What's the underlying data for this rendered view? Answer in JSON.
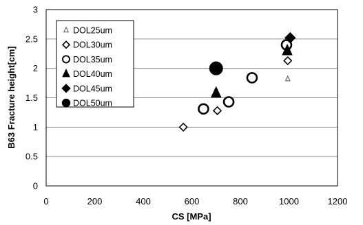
{
  "chart_data": {
    "type": "scatter",
    "xlabel": "CS [MPa]",
    "ylabel": "B63 Fracture height[cm]",
    "xlim": [
      0,
      1200
    ],
    "ylim": [
      0,
      3
    ],
    "xticks": [
      0,
      200,
      400,
      600,
      800,
      1000,
      1200
    ],
    "yticks": [
      0,
      0.5,
      1,
      1.5,
      2,
      2.5,
      3
    ],
    "xtick_labels": [
      "0",
      "200",
      "400",
      "600",
      "800",
      "1000",
      "1200"
    ],
    "ytick_labels": [
      "0",
      "0.5",
      "1",
      "1.5",
      "2",
      "2.5",
      "3"
    ],
    "grid": "horizontal",
    "legend_position": "top-left",
    "series": [
      {
        "name": "DOL25um",
        "marker": "triangle-open",
        "color": "#555555",
        "points": [
          [
            995,
            1.82
          ]
        ]
      },
      {
        "name": "DOL30um",
        "marker": "diamond-open",
        "color": "#000000",
        "points": [
          [
            565,
            1.0
          ],
          [
            705,
            1.28
          ],
          [
            995,
            2.13
          ]
        ]
      },
      {
        "name": "DOL35um",
        "marker": "circle-open",
        "color": "#000000",
        "points": [
          [
            648,
            1.31
          ],
          [
            752,
            1.43
          ],
          [
            848,
            1.84
          ],
          [
            990,
            2.4
          ]
        ]
      },
      {
        "name": "DOL40um",
        "marker": "triangle-filled",
        "color": "#000000",
        "points": [
          [
            700,
            1.58
          ],
          [
            993,
            2.3
          ]
        ]
      },
      {
        "name": "DOL45um",
        "marker": "diamond-filled",
        "color": "#000000",
        "points": [
          [
            1005,
            2.52
          ]
        ]
      },
      {
        "name": "DOL50um",
        "marker": "circle-filled",
        "color": "#000000",
        "points": [
          [
            700,
            2.0
          ]
        ]
      }
    ]
  }
}
